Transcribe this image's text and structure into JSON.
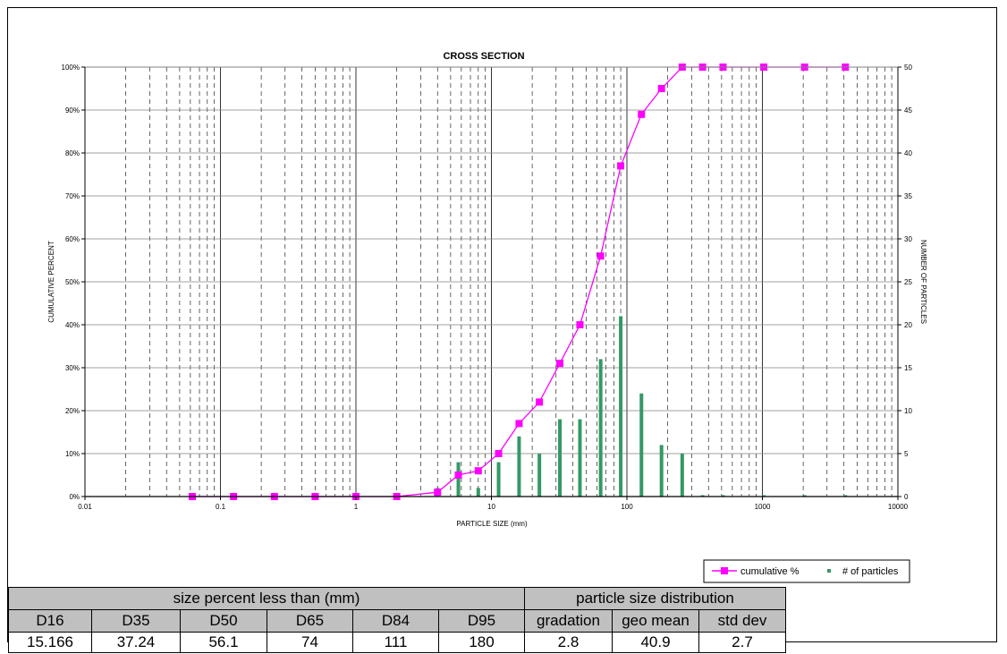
{
  "chart_data": {
    "type": "line",
    "title": "CROSS SECTION",
    "xlabel": "PARTICLE SIZE (mm)",
    "ylabel": "CUMULATIVE PERCENT",
    "y2label": "NUMBER OF PARTICLES",
    "x_scale": "log",
    "xlim": [
      0.01,
      10000
    ],
    "ylim": [
      0,
      100
    ],
    "y2lim": [
      0,
      50
    ],
    "x_ticks": [
      "0.01",
      "0.1",
      "1",
      "10",
      "100",
      "1000",
      "10000"
    ],
    "y_ticks": [
      "0%",
      "10%",
      "20%",
      "30%",
      "40%",
      "50%",
      "60%",
      "70%",
      "80%",
      "90%",
      "100%"
    ],
    "y2_ticks": [
      "0",
      "5",
      "10",
      "15",
      "20",
      "25",
      "30",
      "35",
      "40",
      "45",
      "50"
    ],
    "grid": true,
    "legend_position": "bottom-right",
    "series": [
      {
        "name": "cumulative %",
        "type": "line",
        "axis": "left",
        "color": "#ff00ff",
        "x": [
          0.062,
          0.125,
          0.25,
          0.5,
          1,
          2,
          4,
          5.7,
          8,
          11.3,
          16,
          22.6,
          32,
          45,
          64,
          90,
          128,
          180,
          256,
          362,
          512,
          1024,
          2048,
          4096
        ],
        "y": [
          0,
          0,
          0,
          0,
          0,
          0,
          1,
          5,
          6,
          10,
          17,
          22,
          31,
          40,
          56,
          77,
          89,
          95,
          100,
          100,
          100,
          100,
          100,
          100
        ]
      },
      {
        "name": "# of particles",
        "type": "bar",
        "axis": "right",
        "color": "#339966",
        "x": [
          0.062,
          0.125,
          0.25,
          0.5,
          1,
          2,
          4,
          5.7,
          8,
          11.3,
          16,
          22.6,
          32,
          45,
          64,
          90,
          128,
          180,
          256,
          362,
          512,
          1024,
          2048,
          4096
        ],
        "y": [
          0,
          0,
          0,
          0,
          0,
          0,
          1,
          4,
          1,
          4,
          7,
          5,
          9,
          9,
          16,
          21,
          12,
          6,
          5,
          0,
          0,
          0,
          0,
          0
        ]
      }
    ]
  },
  "stats": {
    "group_headers": {
      "size": "size percent less than (mm)",
      "distribution": "particle size distribution"
    },
    "headers": [
      "D16",
      "D35",
      "D50",
      "D65",
      "D84",
      "D95",
      "gradation",
      "geo mean",
      "std dev"
    ],
    "values": [
      "15.166",
      "37.24",
      "56.1",
      "74",
      "111",
      "180",
      "2.8",
      "40.9",
      "2.7"
    ]
  }
}
